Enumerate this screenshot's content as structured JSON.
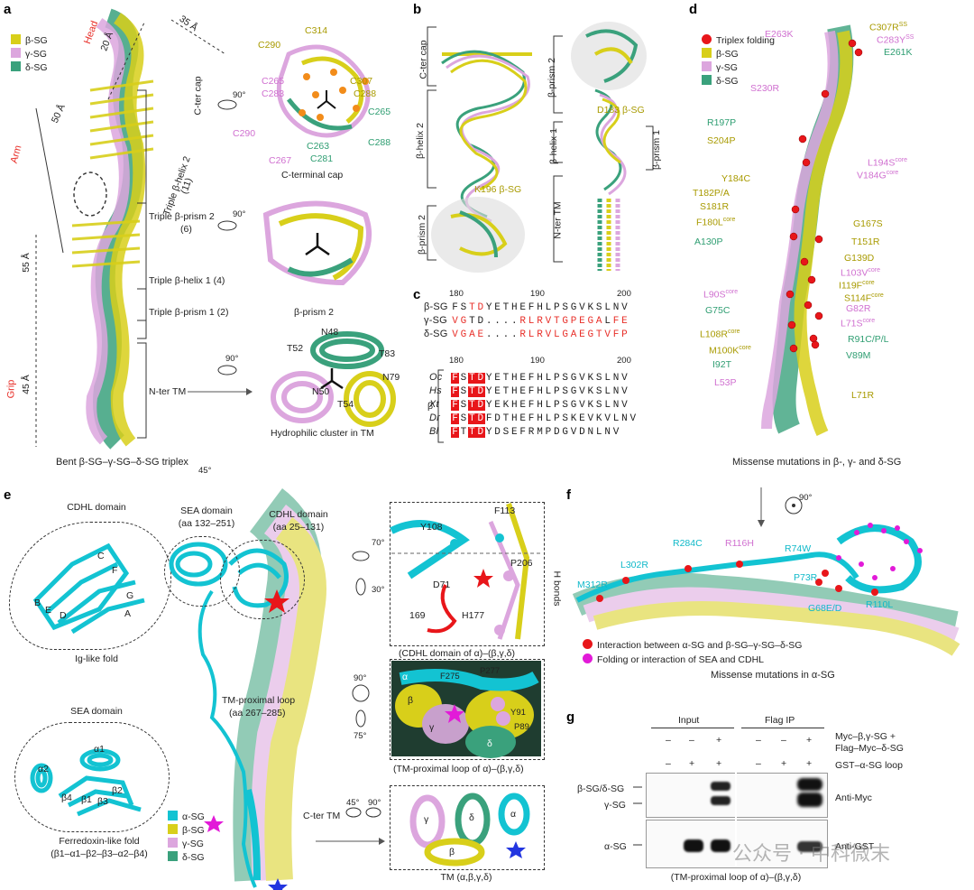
{
  "panels": {
    "a": {
      "label": "a",
      "legend": [
        "β-SG",
        "γ-SG",
        "δ-SG"
      ],
      "colors": {
        "beta": "#d8cf1a",
        "gamma": "#dca6de",
        "delta": "#3aa17c",
        "alpha": "#13c3d2",
        "accent": "#e8302a"
      },
      "region_labels": {
        "head": "Head",
        "arm": "Arm",
        "grip": "Grip"
      },
      "dims": {
        "d20": "20 Å",
        "d35": "35 Å",
        "d50": "50 Å",
        "d55": "55 Å",
        "d45": "45 Å"
      },
      "domains": [
        "C-ter cap",
        "Triple β-helix 2",
        "(11)",
        "Triple β-prism 2",
        "(6)",
        "Triple β-helix 1 (4)",
        "Triple β-prism 1 (2)",
        "N-ter TM"
      ],
      "rot": "90°",
      "cap_residues": [
        "C314",
        "C290",
        "C307",
        "C265",
        "C288",
        "C283",
        "C265",
        "C290",
        "C263",
        "C281",
        "C288",
        "C267"
      ],
      "cap_caption": "C-terminal cap",
      "prism_caption": "β-prism 2",
      "tm_residues": [
        "N48",
        "T52",
        "T83",
        "N79",
        "N50",
        "T54"
      ],
      "tm_caption": "Hydrophilic cluster in TM",
      "bottom_caption": "Bent β-SG–γ-SG–δ-SG triplex",
      "rot45": "45°"
    },
    "b": {
      "label": "b",
      "left_domains": [
        "C-ter cap",
        "β-helix 2",
        "β-prism 2"
      ],
      "right_domains": [
        "β-prism 2",
        "β-helix 1",
        "β-prism 1",
        "N-ter TM"
      ],
      "residues": [
        "K196 β-SG",
        "D183 β-SG"
      ]
    },
    "c": {
      "label": "c",
      "positions": [
        "180",
        "190",
        "200"
      ],
      "top_rows": [
        {
          "name": "β-SG",
          "seq": "FSTDYETHEFHLPSGVKSLNV"
        },
        {
          "name": "γ-SG",
          "seq": "VGTD....RLRVTGPEGALFE"
        },
        {
          "name": "δ-SG",
          "seq": "VGAE....RLRVLGAEGTVFP"
        }
      ],
      "beta_label": "β",
      "bottom_rows": [
        {
          "name": "Oc",
          "seq": "FSTDYETHEFHLPSGVKSLNV"
        },
        {
          "name": "Hs",
          "seq": "FSTDYETHEFHLPSGVKSLNV"
        },
        {
          "name": "Xt",
          "seq": "FSTDYEKHEFHLPSGVKSLNV"
        },
        {
          "name": "Dr",
          "seq": "FSTDFDTHEFHLPSKEVKVLNV"
        },
        {
          "name": "Bl",
          "seq": "FTTDYDSEFRMPDGVDNLNV"
        }
      ]
    },
    "d": {
      "label": "d",
      "legend": [
        "Triplex folding",
        "β-SG",
        "γ-SG",
        "δ-SG"
      ],
      "mutations_left": [
        "E263K",
        "S230R",
        "R197P",
        "S204P",
        "Y184C",
        "T182P/A",
        "S181R",
        "F180L",
        "A130P",
        "L90S",
        "G75C",
        "L108R",
        "M100K",
        "I92T",
        "L53P"
      ],
      "mutations_right": [
        "C307R",
        "C283Y",
        "E261K",
        "L194S",
        "V184G",
        "G167S",
        "T151R",
        "G139D",
        "L103V",
        "I119F",
        "S114F",
        "G82R",
        "L71S",
        "R91C/P/L",
        "V89M",
        "L71R"
      ],
      "sup": {
        "ss": "SS",
        "core": "core"
      },
      "caption": "Missense mutations in β-, γ- and δ-SG"
    },
    "e": {
      "label": "e",
      "cdhl_title": "CDHL domain",
      "cdhl_strands": [
        "C",
        "F",
        "B",
        "E",
        "D",
        "G",
        "A"
      ],
      "cdhl_caption": "Ig-like fold",
      "sea_title": "SEA domain",
      "sea_labels": [
        "α2",
        "α1",
        "β4",
        "β1",
        "β3",
        "β2"
      ],
      "sea_caption": "Ferredoxin-like fold",
      "sea_caption2": "(β1–α1–β2–β3–α2–β4)",
      "center_sea": "SEA domain",
      "center_sea_aa": "(aa 132–251)",
      "center_cdhl": "CDHL domain",
      "center_cdhl_aa": "(aa 25–131)",
      "loop_label": "TM-proximal loop",
      "loop_aa": "(aa 267–285)",
      "cter_tm": "C-ter TM",
      "legend": [
        "α-SG",
        "β-SG",
        "γ-SG",
        "δ-SG"
      ],
      "inset1_residues": [
        "F113",
        "Y108",
        "P206",
        "D71",
        "169",
        "H177"
      ],
      "inset1_rot": [
        "70°",
        "30°"
      ],
      "hbonds": "H bonds",
      "inset1_caption": "(CDHL domain of α)–(β,γ,δ)",
      "inset2_residues": [
        "F275",
        "P277",
        "α",
        "Y91",
        "β",
        "P89",
        "γ",
        "δ"
      ],
      "inset2_rot": [
        "90°",
        "75°"
      ],
      "inset2_caption": "(TM-proximal loop of α)–(β,γ,δ)",
      "inset3_rot": [
        "45°",
        "90°"
      ],
      "inset3_labels": [
        "γ",
        "δ",
        "α",
        "β"
      ],
      "inset3_caption": "TM (α,β,γ,δ)"
    },
    "f": {
      "label": "f",
      "rot": "90°",
      "mutations": [
        "M312R",
        "L302R",
        "R284C",
        "R116H",
        "R74W",
        "P73R",
        "G68E/D",
        "R110L"
      ],
      "legend": [
        "Interaction between α-SG and β-SG–γ-SG–δ-SG",
        "Folding or interaction of SEA and CDHL"
      ],
      "caption": "Missense mutations in α-SG"
    },
    "g": {
      "label": "g",
      "headers": [
        "Input",
        "Flag IP"
      ],
      "cond1": "Myc–β,γ-SG +",
      "cond1b": "Flag–Myc–δ-SG",
      "cond2": "GST–α-SG loop",
      "signs_row1": [
        "–",
        "–",
        "+",
        "–",
        "–",
        "+"
      ],
      "signs_row2": [
        "–",
        "+",
        "+",
        "–",
        "+",
        "+"
      ],
      "bands_left": [
        "β-SG/δ-SG",
        "γ-SG",
        "α-SG"
      ],
      "antibodies": [
        "Anti-Myc",
        "Anti-GST"
      ],
      "caption": "(TM-proximal loop of α)–(β,γ,δ)"
    },
    "watermark": "公众号 · 中科微末"
  }
}
